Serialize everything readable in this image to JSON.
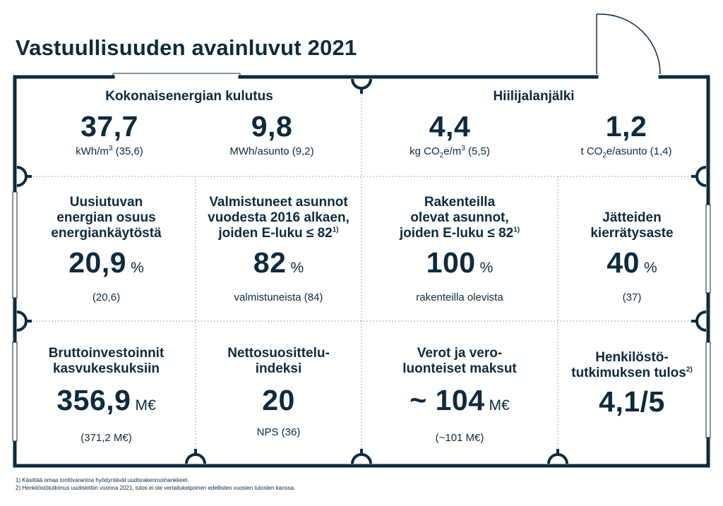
{
  "title": "Vastuullisuuden avainluvut 2021",
  "colors": {
    "navy": "#0f2a3d",
    "dots": "#9aa4ab"
  },
  "energy": {
    "heading": "Kokonaisenergian kulutus",
    "per_m3": {
      "value": "37,7",
      "sub_pre": "kWh/m",
      "sub_sup": "3",
      "sub_post": " (35,6)"
    },
    "per_apartment": {
      "value": "9,8",
      "sub": "MWh/asunto (9,2)"
    }
  },
  "carbon": {
    "heading": "Hiilijalanjälki",
    "per_m3": {
      "value": "4,4",
      "sub_pre": "kg CO",
      "sub_sub": "2",
      "sub_mid": "e/m",
      "sub_sup": "3",
      "sub_post": " (5,5)"
    },
    "per_apartment": {
      "value": "1,2",
      "sub_pre": "t CO",
      "sub_sub": "2",
      "sub_post": "e/asunto (1,4)"
    }
  },
  "renewable": {
    "heading": [
      "Uusiutuvan",
      "energian osuus",
      "energiankäytöstä"
    ],
    "value": "20,9",
    "unit": "%",
    "sub": "(20,6)"
  },
  "completed": {
    "heading": [
      "Valmistuneet asunnot",
      "vuodesta 2016 alkaen,",
      "joiden E-luku ≤ 82"
    ],
    "note": "1)",
    "value": "82",
    "unit": "%",
    "sub": "valmistuneista (84)"
  },
  "under_construction": {
    "heading": [
      "Rakenteilla",
      "olevat asunnot,",
      "joiden E-luku ≤ 82"
    ],
    "note": "1)",
    "value": "100",
    "unit": "%",
    "sub": "rakenteilla olevista"
  },
  "waste": {
    "heading": [
      "Jätteiden",
      "kierrätysaste"
    ],
    "value": "40",
    "unit": "%",
    "sub": "(37)"
  },
  "investments": {
    "heading": [
      "Bruttoinvestoinnit",
      "kasvukeskuksiin"
    ],
    "value": "356,9",
    "unit": "M€",
    "sub": "(371,2 M€)"
  },
  "nps": {
    "heading": [
      "Nettosuosittelu-",
      "indeksi"
    ],
    "value": "20",
    "sub": "NPS (36)"
  },
  "taxes": {
    "heading": [
      "Verot ja vero-",
      "luonteiset maksut"
    ],
    "value": "~ 104",
    "unit": "M€",
    "sub": "(~101 M€)"
  },
  "personnel": {
    "heading": [
      "Henkilöstö-",
      "tutkimuksen tulos"
    ],
    "note": "2)",
    "value": "4,1/5"
  },
  "footnotes": [
    "1) Käsittää omaa tonttivarantoa hyödyntävät uudisrakennushankkeet.",
    "2) Henkilöstötutkimus uudistettiin vuonna 2021, tulos ei ole vertailukelpoinen edellisten vuosien tulosten kanssa."
  ]
}
